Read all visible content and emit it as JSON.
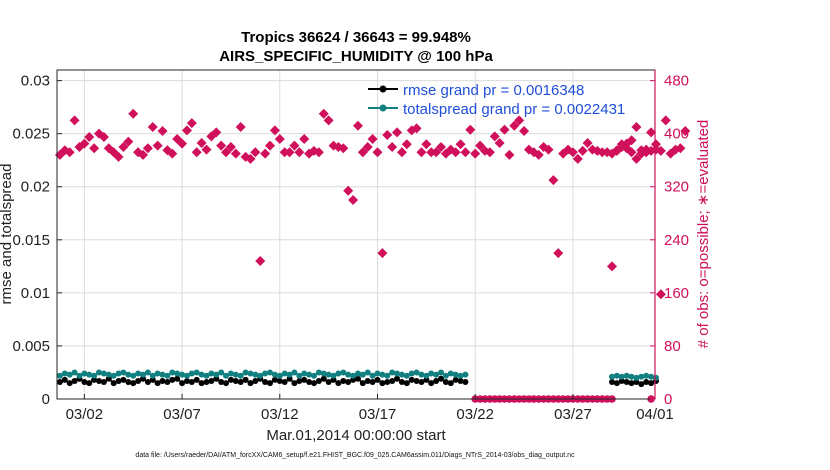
{
  "chart_data": {
    "type": "scatter",
    "title": [
      "Tropics 36624 / 36643 = 99.948%",
      "AIRS_SPECIFIC_HUMIDITY @ 100 hPa"
    ],
    "xlabel": "Mar.01,2014 00:00:00 start",
    "ylabel_left": "rmse and totalspread",
    "ylabel_right": "# of obs: o=possible; ∗=evaluated",
    "xlim": [
      0.6,
      31.2
    ],
    "ylim_left": [
      0,
      0.031
    ],
    "ylim_right": [
      0,
      496
    ],
    "x_ticks": [
      {
        "x": 2,
        "label": "03/02"
      },
      {
        "x": 7,
        "label": "03/07"
      },
      {
        "x": 12,
        "label": "03/12"
      },
      {
        "x": 17,
        "label": "03/17"
      },
      {
        "x": 22,
        "label": "03/22"
      },
      {
        "x": 27,
        "label": "03/27"
      },
      {
        "x": 32,
        "label": "04/01"
      }
    ],
    "y_left_ticks": [
      "0",
      "0.005",
      "0.01",
      "0.015",
      "0.02",
      "0.025",
      "0.03"
    ],
    "y_left_tick_values": [
      0,
      0.005,
      0.01,
      0.015,
      0.02,
      0.025,
      0.03
    ],
    "y_right_ticks": [
      "0",
      "80",
      "160",
      "240",
      "320",
      "400",
      "480"
    ],
    "y_right_tick_values": [
      0,
      80,
      160,
      240,
      320,
      400,
      480
    ],
    "grid": true,
    "legend_position": "top-right",
    "series": [
      {
        "name": "rmse grand pr = 0.0016348",
        "axis": "left",
        "color": "#000000",
        "style": "line-dot",
        "segments": [
          {
            "x_start": 0.75,
            "x_step": 0.25,
            "values": [
              0.0016,
              0.0018,
              0.0015,
              0.0017,
              0.0019,
              0.0016,
              0.0015,
              0.0018,
              0.0017,
              0.0016,
              0.0019,
              0.0015,
              0.0017,
              0.0018,
              0.0016,
              0.0015,
              0.0017,
              0.0019,
              0.0016,
              0.0018,
              0.0015,
              0.0017,
              0.0016,
              0.0018,
              0.0019,
              0.0015,
              0.0017,
              0.0016,
              0.0018,
              0.0015,
              0.0016,
              0.0017,
              0.0019,
              0.0016,
              0.0015,
              0.0018,
              0.0017,
              0.0016,
              0.0018,
              0.0015,
              0.0017,
              0.0019,
              0.0016,
              0.0015,
              0.0018,
              0.0017,
              0.0016,
              0.0019,
              0.0015,
              0.0017,
              0.0018,
              0.0016,
              0.0015,
              0.0017,
              0.0019,
              0.0016,
              0.0018,
              0.0015,
              0.0017,
              0.0016,
              0.0018,
              0.0019,
              0.0015,
              0.0017,
              0.0016,
              0.0018,
              0.0015,
              0.0016,
              0.0017,
              0.0019,
              0.0016,
              0.0015,
              0.0018,
              0.0017,
              0.0016,
              0.0018,
              0.0015,
              0.0017,
              0.0019,
              0.0016,
              0.0015,
              0.0018,
              0.0017,
              0.0016
            ]
          },
          {
            "x_start": 29.0,
            "x_step": 0.25,
            "values": [
              0.0016,
              0.0015,
              0.0017,
              0.0016,
              0.0015,
              0.0016,
              0.0014,
              0.0016,
              0.0015,
              0.0017
            ]
          }
        ]
      },
      {
        "name": "totalspread grand pr = 0.0022431",
        "axis": "left",
        "color": "#128080",
        "style": "line-dot",
        "segments": [
          {
            "x_start": 0.75,
            "x_step": 0.25,
            "values": [
              0.0022,
              0.0024,
              0.0023,
              0.0025,
              0.0022,
              0.0024,
              0.0023,
              0.0022,
              0.0025,
              0.0024,
              0.0023,
              0.0022,
              0.0024,
              0.0025,
              0.0023,
              0.0022,
              0.0024,
              0.0023,
              0.0025,
              0.0022,
              0.0024,
              0.0023,
              0.0022,
              0.0025,
              0.0024,
              0.0023,
              0.0022,
              0.0024,
              0.0025,
              0.0023,
              0.0022,
              0.0024,
              0.0023,
              0.0025,
              0.0022,
              0.0024,
              0.0023,
              0.0022,
              0.0025,
              0.0024,
              0.0023,
              0.0022,
              0.0024,
              0.0025,
              0.0023,
              0.0022,
              0.0024,
              0.0023,
              0.0025,
              0.0022,
              0.0024,
              0.0023,
              0.0022,
              0.0025,
              0.0024,
              0.0023,
              0.0022,
              0.0024,
              0.0025,
              0.0023,
              0.0022,
              0.0024,
              0.0023,
              0.0025,
              0.0022,
              0.0024,
              0.0023,
              0.0022,
              0.0025,
              0.0024,
              0.0023,
              0.0022,
              0.0024,
              0.0025,
              0.0023,
              0.0022,
              0.0024,
              0.0023,
              0.0025,
              0.0022,
              0.0024,
              0.0023,
              0.0022,
              0.0023
            ]
          },
          {
            "x_start": 29.0,
            "x_step": 0.25,
            "values": [
              0.0021,
              0.0022,
              0.0021,
              0.0022,
              0.0021,
              0.002,
              0.0021,
              0.0022,
              0.0021,
              0.002
            ]
          }
        ]
      },
      {
        "name": "obs possible",
        "axis": "right",
        "color": "#d0105a",
        "marker": "circle",
        "segments": [
          {
            "x_start": 22.0,
            "x_step": 0.25,
            "values": [
              0,
              0,
              0,
              0,
              0,
              0,
              0,
              0,
              0,
              0,
              0,
              0,
              0,
              0,
              0,
              0,
              0,
              0,
              0,
              0,
              0,
              0,
              0,
              0,
              0,
              0,
              0,
              0,
              0
            ]
          },
          {
            "x_start": 31.0,
            "x_step": 0.25,
            "values": [
              0
            ]
          }
        ]
      },
      {
        "name": "obs evaluated",
        "axis": "right",
        "color": "#d0105a",
        "marker": "asterisk",
        "segments": [
          {
            "x_start": 0.75,
            "x_step": 0.25,
            "values": [
              368,
              375,
              372,
              420,
              380,
              385,
              395,
              378,
              400,
              395,
              378,
              372,
              365,
              380,
              388,
              430,
              372,
              368,
              378,
              410,
              382,
              404,
              375,
              370,
              392,
              385,
              405,
              416,
              372,
              386,
              376,
              396,
              402,
              382,
              372,
              380,
              370,
              410,
              365,
              362,
              372,
              208,
              370,
              382,
              405,
              392,
              372,
              372,
              382,
              372,
              392,
              370,
              374,
              372,
              430,
              420,
              382,
              380,
              378,
              314,
              300,
              412,
              372,
              380,
              392,
              372,
              220,
              398,
              380,
              402,
              372,
              384,
              405,
              408,
              372,
              384,
              372,
              372,
              380,
              370,
              376,
              372,
              384,
              372,
              406,
              370,
              382,
              374,
              372,
              396,
              386,
              406,
              368,
              412,
              420,
              404,
              376,
              372,
              368,
              380,
              376,
              330,
              220,
              370,
              376,
              372,
              362,
              374,
              386,
              376,
              374,
              372,
              372,
              370,
              374,
              384,
              378,
              372,
              362,
              370,
              376,
              374,
              384,
              158
            ]
          },
          {
            "x_start": 29.0,
            "x_step": 0.25,
            "values": [
              200,
              375,
              380,
              385,
              390,
              410,
              375,
              372,
              402,
              376,
              374,
              420,
              370,
              376,
              378,
              404
            ]
          }
        ]
      }
    ],
    "footnote": "data file: /Users/raeder/DAI/ATM_forcXX/CAM6_setup/f.e21.FHIST_BGC.f09_025.CAM6assim.011/Diags_NTrS_2014-03/obs_diag_output.nc"
  }
}
